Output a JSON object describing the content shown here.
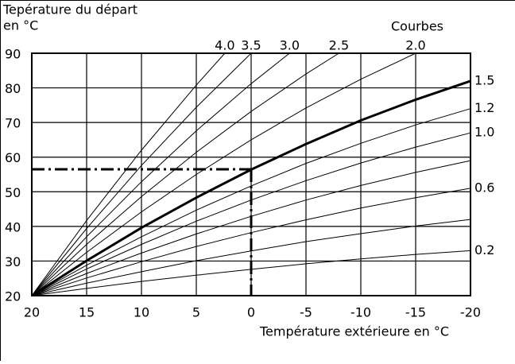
{
  "chart_data": {
    "type": "line",
    "title": "Tepérature du départ",
    "ylabel": "en °C",
    "legend_title": "Courbes",
    "xlabel": "Température extérieure en °C",
    "xlim": [
      20,
      -20
    ],
    "ylim": [
      20,
      90
    ],
    "xticks": [
      20,
      15,
      10,
      5,
      0,
      -5,
      -10,
      -15,
      -20
    ],
    "yticks": [
      20,
      30,
      40,
      50,
      60,
      70,
      80,
      90
    ],
    "grid": true,
    "series": [
      {
        "name": "4.0",
        "color": "#000",
        "x": [
          20,
          15,
          10,
          5,
          2.4
        ],
        "values": [
          20,
          41.7,
          62.0,
          80.8,
          90
        ]
      },
      {
        "name": "3.5",
        "color": "#000",
        "x": [
          20,
          15,
          10,
          5,
          0
        ],
        "values": [
          20,
          39.4,
          57.6,
          74.4,
          90
        ]
      },
      {
        "name": "3.0",
        "color": "#000",
        "x": [
          20,
          15,
          10,
          5,
          0,
          -3.5
        ],
        "values": [
          20,
          37.0,
          52.9,
          67.6,
          81.2,
          90
        ]
      },
      {
        "name": "2.5",
        "color": "#000",
        "x": [
          20,
          15,
          10,
          5,
          0,
          -5,
          -8
        ],
        "values": [
          20,
          34.8,
          48.6,
          61.4,
          73.2,
          84.0,
          90
        ]
      },
      {
        "name": "2.0",
        "color": "#000",
        "x": [
          20,
          15,
          10,
          5,
          0,
          -5,
          -10,
          -15
        ],
        "values": [
          20,
          32.5,
          44.2,
          55.0,
          65.0,
          74.2,
          82.5,
          90
        ]
      },
      {
        "name": "1.5",
        "color": "#000",
        "linewidth": 3,
        "x": [
          20,
          15,
          10,
          5,
          0,
          -5,
          -10,
          -15,
          -20
        ],
        "values": [
          20,
          30.1,
          39.6,
          48.3,
          56.4,
          63.8,
          70.6,
          76.6,
          82
        ]
      },
      {
        "name": "1.2",
        "color": "#000",
        "x": [
          20,
          15,
          10,
          5,
          0,
          -5,
          -10,
          -15,
          -20
        ],
        "values": [
          20,
          28.8,
          37.0,
          44.7,
          51.7,
          58.2,
          64.0,
          69.3,
          74
        ]
      },
      {
        "name": "1.0",
        "color": "#000",
        "x": [
          20,
          15,
          10,
          5,
          0,
          -5,
          -10,
          -15,
          -20
        ],
        "values": [
          20,
          27.7,
          34.8,
          41.5,
          47.6,
          53.2,
          58.3,
          62.9,
          67
        ]
      },
      {
        "color": "#000",
        "x": [
          20,
          15,
          10,
          5,
          0,
          -5,
          -10,
          -15,
          -20
        ],
        "values": [
          20,
          26.4,
          32.3,
          37.8,
          42.9,
          47.6,
          51.8,
          55.6,
          59
        ]
      },
      {
        "name": "0.6",
        "color": "#000",
        "x": [
          20,
          15,
          10,
          5,
          0,
          -5,
          -10,
          -15,
          -20
        ],
        "values": [
          20,
          25.1,
          29.8,
          34.2,
          38.2,
          41.9,
          45.3,
          48.3,
          51
        ]
      },
      {
        "color": "#000",
        "x": [
          20,
          15,
          10,
          5,
          0,
          -5,
          -10,
          -15,
          -20
        ],
        "values": [
          20,
          23.6,
          26.9,
          30.1,
          32.9,
          35.6,
          37.9,
          40.1,
          42
        ]
      },
      {
        "name": "0.2",
        "color": "#000",
        "x": [
          20,
          15,
          10,
          5,
          0,
          -5,
          -10,
          -15,
          -20
        ],
        "values": [
          20,
          22.1,
          24.1,
          25.9,
          27.6,
          29.2,
          30.6,
          31.9,
          33
        ]
      }
    ],
    "reference": {
      "x": 0,
      "y": 56.5
    }
  }
}
